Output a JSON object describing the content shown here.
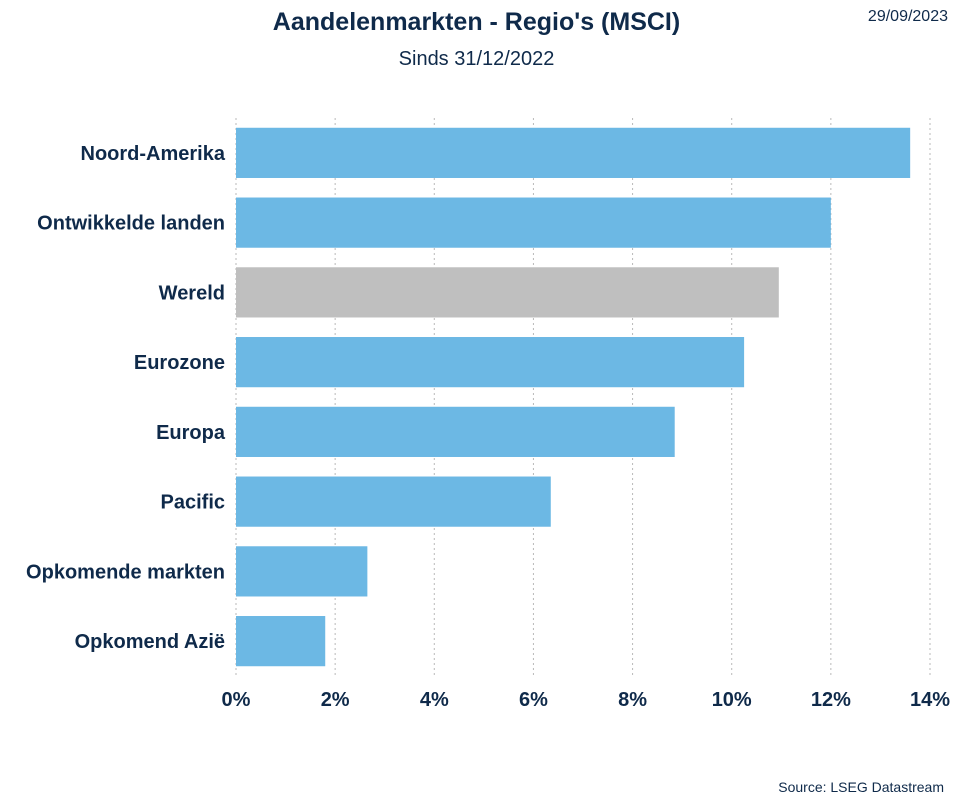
{
  "header": {
    "title": "Aandelenmarkten - Regio's (MSCI)",
    "subtitle": "Sinds 31/12/2022",
    "date": "29/09/2023"
  },
  "footer": {
    "source": "Source: LSEG Datastream"
  },
  "colors": {
    "bar": "#6cb8e4",
    "highlight_bar": "#bfbfbf",
    "text": "#0f2a4a"
  },
  "chart_data": {
    "type": "bar",
    "orientation": "horizontal",
    "title": "Aandelenmarkten - Regio's (MSCI)",
    "subtitle": "Sinds 31/12/2022",
    "categories": [
      "Noord-Amerika",
      "Ontwikkelde landen",
      "Wereld",
      "Eurozone",
      "Europa",
      "Pacific",
      "Opkomende markten",
      "Opkomend Azië"
    ],
    "values": [
      13.6,
      12.0,
      10.95,
      10.25,
      8.85,
      6.35,
      2.65,
      1.8
    ],
    "highlight_category": "Wereld",
    "xlabel": "",
    "ylabel": "",
    "xlim": [
      0,
      14
    ],
    "xticks": [
      0,
      2,
      4,
      6,
      8,
      10,
      12,
      14
    ],
    "xtick_labels": [
      "0%",
      "2%",
      "4%",
      "6%",
      "8%",
      "10%",
      "12%",
      "14%"
    ],
    "grid": "vertical-dotted",
    "legend": "none"
  }
}
